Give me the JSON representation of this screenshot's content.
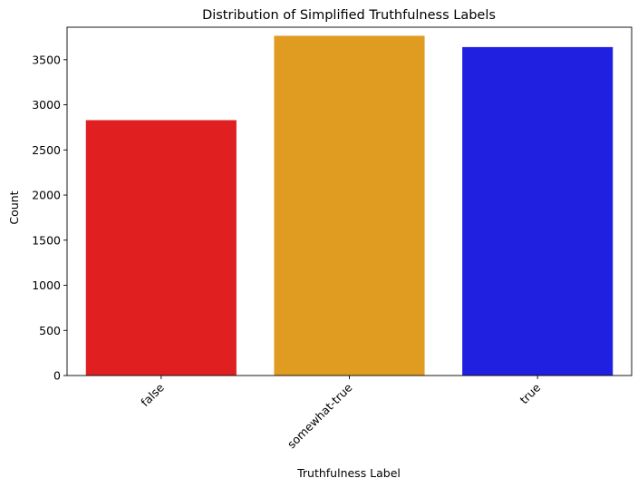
{
  "chart_data": {
    "type": "bar",
    "title": "Distribution of Simplified Truthfulness Labels",
    "xlabel": "Truthfulness Label",
    "ylabel": "Count",
    "categories": [
      "false",
      "somewhat-true",
      "true"
    ],
    "values": [
      2830,
      3765,
      3640
    ],
    "colors": [
      "#e02020",
      "#e09c20",
      "#2020e0"
    ],
    "ylim": [
      0,
      3860
    ],
    "yticks": [
      0,
      500,
      1000,
      1500,
      2000,
      2500,
      3000,
      3500
    ],
    "grid": false,
    "xtick_rotation_deg": 45
  }
}
